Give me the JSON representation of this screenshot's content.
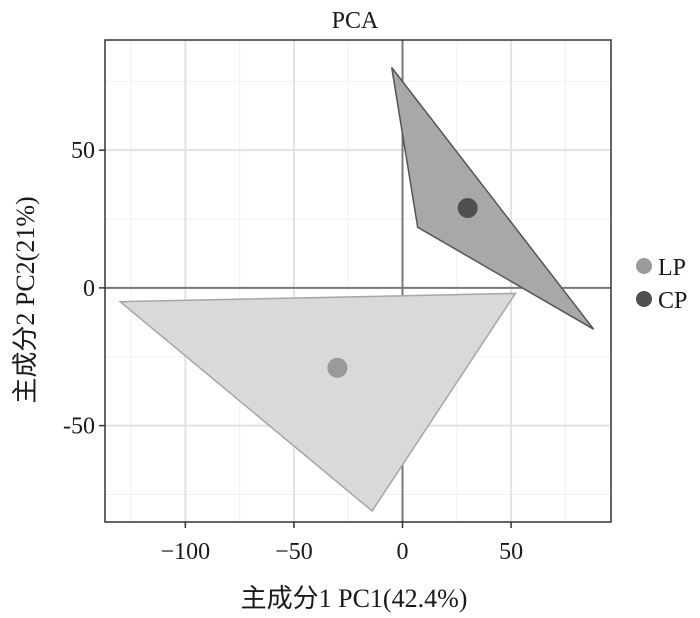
{
  "chart_data": {
    "type": "scatter",
    "title": "PCA",
    "xlabel": "主成分1 PC1(42.4%)",
    "ylabel": "主成分2 PC2(21%)",
    "xlim": [
      -137,
      96
    ],
    "ylim": [
      -85,
      90
    ],
    "x_ticks": [
      -100,
      -50,
      0,
      50
    ],
    "x_tick_labels": [
      "−100",
      "−50",
      "0",
      "50"
    ],
    "y_ticks": [
      -50,
      0,
      50
    ],
    "y_tick_labels": [
      "-50",
      "0",
      "50"
    ],
    "reference_lines": {
      "x": 0,
      "y": 0
    },
    "grid": true,
    "legend_position": "right",
    "series": [
      {
        "name": "LP",
        "color": "#9a9a9a",
        "hull_fill": "#d9d9d9",
        "hull_stroke": "#a6a6a6",
        "centroid": [
          -30,
          -29
        ],
        "hull": [
          [
            -130,
            -5
          ],
          [
            52,
            -2
          ],
          [
            -14,
            -81
          ]
        ]
      },
      {
        "name": "CP",
        "color": "#4f4f4f",
        "hull_fill": "#a8a8a8",
        "hull_stroke": "#555555",
        "centroid": [
          30,
          29
        ],
        "hull": [
          [
            -5,
            80
          ],
          [
            88,
            -15
          ],
          [
            7,
            22
          ]
        ]
      }
    ]
  }
}
